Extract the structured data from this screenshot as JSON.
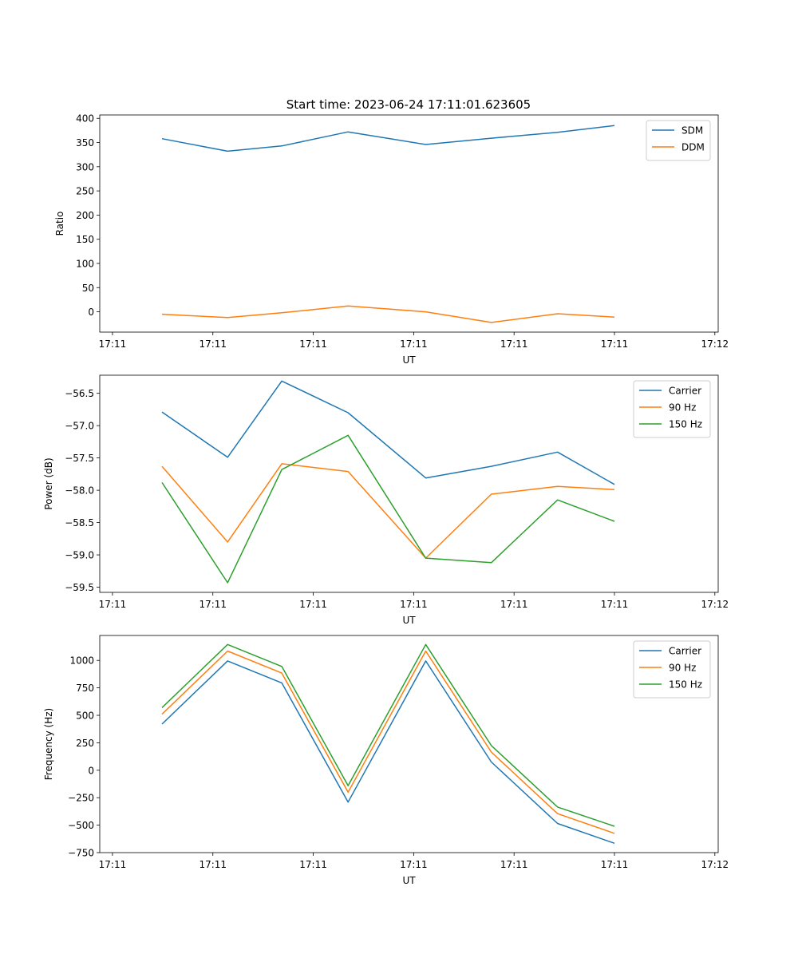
{
  "figure_title": "Start time: 2023-06-24 17:11:01.623605",
  "chart_data": [
    {
      "type": "line",
      "title": "Start time: 2023-06-24 17:11:01.623605",
      "xlabel": "UT",
      "ylabel": "Ratio",
      "xlim": [
        0,
        9.24
      ],
      "x_ticks": [
        0.19,
        1.69,
        3.19,
        4.69,
        6.19,
        7.69,
        9.19
      ],
      "x_tick_labels": [
        "17:11",
        "17:11",
        "17:11",
        "17:11",
        "17:11",
        "17:11",
        "17:12"
      ],
      "ylim": [
        -42,
        407
      ],
      "y_ticks": [
        0,
        50,
        100,
        150,
        200,
        250,
        300,
        350,
        400
      ],
      "y_tick_labels": [
        "0",
        "50",
        "100",
        "150",
        "200",
        "250",
        "300",
        "350",
        "400"
      ],
      "x": [
        0.93,
        1.91,
        2.72,
        3.71,
        4.87,
        5.85,
        6.84,
        7.69
      ],
      "series": [
        {
          "name": "SDM",
          "color": "#1f77b4",
          "values": [
            358,
            332,
            343,
            372,
            346,
            359,
            371,
            385
          ]
        },
        {
          "name": "DDM",
          "color": "#ff7f0e",
          "values": [
            -5,
            -12,
            -2,
            12,
            0,
            -22,
            -4,
            -11
          ]
        }
      ],
      "legend": "top-right",
      "grid": false
    },
    {
      "type": "line",
      "xlabel": "UT",
      "ylabel": "Power (dB)",
      "xlim": [
        0,
        9.24
      ],
      "x_ticks": [
        0.19,
        1.69,
        3.19,
        4.69,
        6.19,
        7.69,
        9.19
      ],
      "x_tick_labels": [
        "17:11",
        "17:11",
        "17:11",
        "17:11",
        "17:11",
        "17:11",
        "17:12"
      ],
      "ylim": [
        -59.58,
        -56.22
      ],
      "y_ticks": [
        -59.5,
        -59.0,
        -58.5,
        -58.0,
        -57.5,
        -57.0,
        -56.5
      ],
      "y_tick_labels": [
        "−59.5",
        "−59.0",
        "−58.5",
        "−58.0",
        "−57.5",
        "−57.0",
        "−56.5"
      ],
      "x": [
        0.93,
        1.91,
        2.72,
        3.71,
        4.87,
        5.85,
        6.84,
        7.69
      ],
      "series": [
        {
          "name": "Carrier",
          "color": "#1f77b4",
          "values": [
            -56.79,
            -57.49,
            -56.31,
            -56.8,
            -57.81,
            -57.63,
            -57.41,
            -57.91
          ]
        },
        {
          "name": "90 Hz",
          "color": "#ff7f0e",
          "values": [
            -57.63,
            -58.8,
            -57.59,
            -57.71,
            -59.05,
            -58.06,
            -57.94,
            -57.99
          ]
        },
        {
          "name": "150 Hz",
          "color": "#2ca02c",
          "values": [
            -57.88,
            -59.43,
            -57.68,
            -57.15,
            -59.05,
            -59.12,
            -58.15,
            -58.48
          ]
        }
      ],
      "legend": "top-right",
      "grid": false
    },
    {
      "type": "line",
      "xlabel": "UT",
      "ylabel": "Frequency (Hz)",
      "xlim": [
        0,
        9.24
      ],
      "x_ticks": [
        0.19,
        1.69,
        3.19,
        4.69,
        6.19,
        7.69,
        9.19
      ],
      "x_tick_labels": [
        "17:11",
        "17:11",
        "17:11",
        "17:11",
        "17:11",
        "17:11",
        "17:12"
      ],
      "ylim": [
        -750,
        1227
      ],
      "y_ticks": [
        -750,
        -500,
        -250,
        0,
        250,
        500,
        750,
        1000
      ],
      "y_tick_labels": [
        "−750",
        "−500",
        "−250",
        "0",
        "250",
        "500",
        "750",
        "1000"
      ],
      "x": [
        0.93,
        1.91,
        2.72,
        3.71,
        4.87,
        5.85,
        6.84,
        7.69
      ],
      "series": [
        {
          "name": "Carrier",
          "color": "#1f77b4",
          "values": [
            420,
            995,
            795,
            -290,
            995,
            75,
            -485,
            -665
          ]
        },
        {
          "name": "90 Hz",
          "color": "#ff7f0e",
          "values": [
            510,
            1085,
            885,
            -200,
            1085,
            165,
            -395,
            -575
          ]
        },
        {
          "name": "150 Hz",
          "color": "#2ca02c",
          "values": [
            570,
            1145,
            945,
            -140,
            1145,
            225,
            -335,
            -510
          ]
        }
      ],
      "legend": "top-right",
      "grid": false
    }
  ]
}
